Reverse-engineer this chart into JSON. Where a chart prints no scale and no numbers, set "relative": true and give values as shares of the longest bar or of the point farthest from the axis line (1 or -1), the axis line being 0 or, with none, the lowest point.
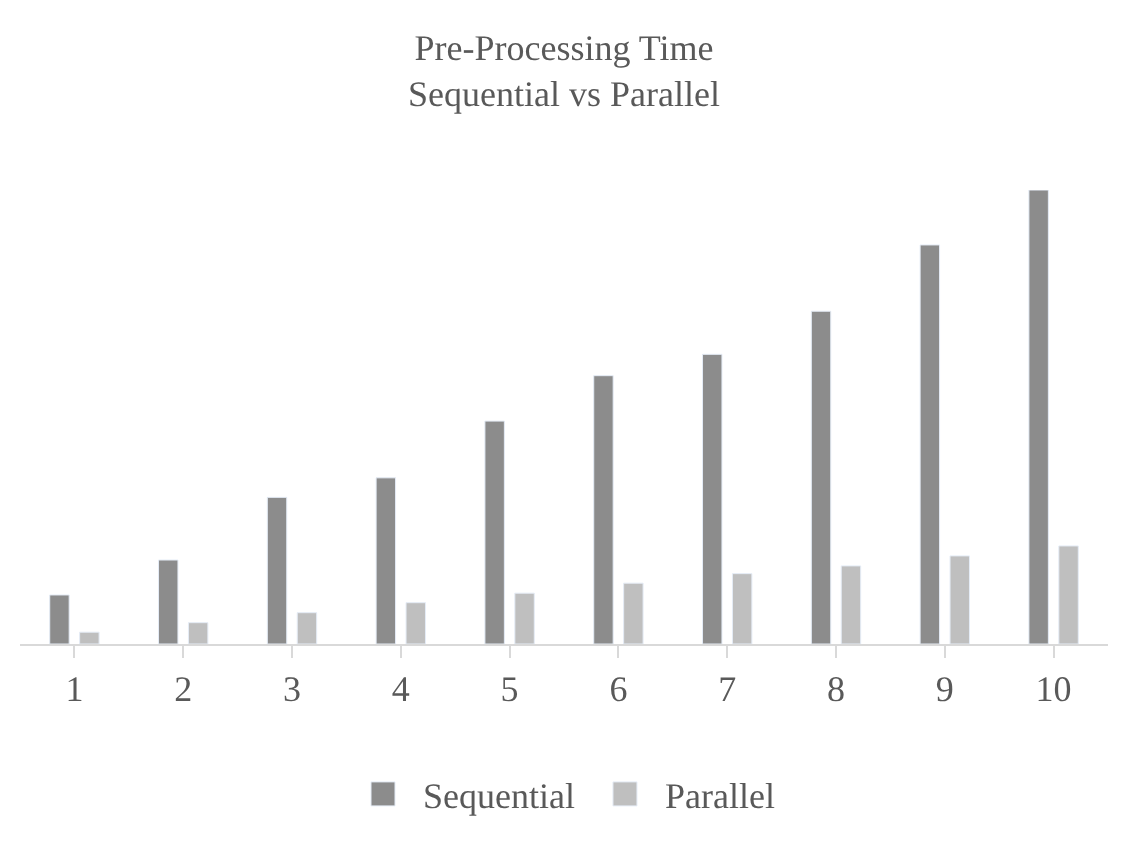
{
  "chart_data": {
    "type": "bar",
    "title": "Pre-Processing Time\nSequential vs Parallel",
    "relative": true,
    "categories": [
      "1",
      "2",
      "3",
      "4",
      "5",
      "6",
      "7",
      "8",
      "9",
      "10"
    ],
    "series": [
      {
        "name": "Sequential",
        "color": "#8c8c8c",
        "values": [
          0.108,
          0.185,
          0.323,
          0.366,
          0.491,
          0.591,
          0.638,
          0.733,
          0.879,
          1
        ]
      },
      {
        "name": "Parallel",
        "color": "#bfbfbf",
        "values": [
          0.026,
          0.047,
          0.069,
          0.091,
          0.112,
          0.134,
          0.155,
          0.172,
          0.194,
          0.216
        ]
      }
    ],
    "legend": "bottom"
  }
}
